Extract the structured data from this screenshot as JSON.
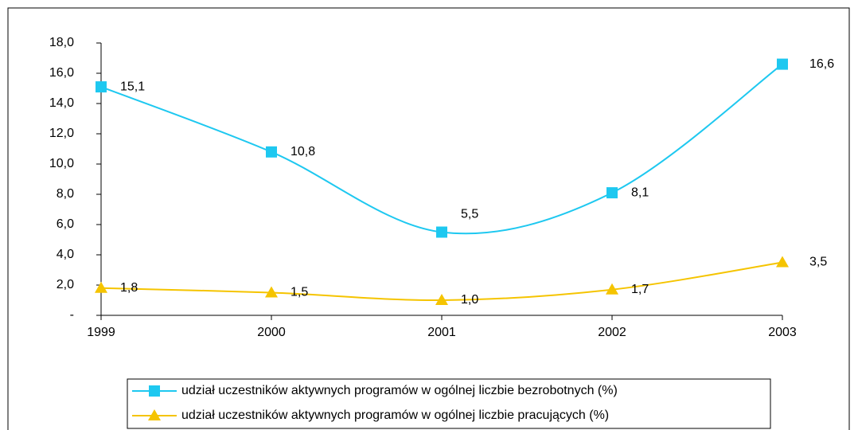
{
  "chart_data": {
    "type": "line",
    "categories": [
      "1999",
      "2000",
      "2001",
      "2002",
      "2003"
    ],
    "series": [
      {
        "name": "udział uczestników aktywnych programów w ogólnej liczbie bezrobotnych (%)",
        "color": "#1ec8f0",
        "marker": "square",
        "values": [
          15.1,
          10.8,
          5.5,
          8.1,
          16.6
        ],
        "value_labels": [
          "15,1",
          "10,8",
          "5,5",
          "8,1",
          "16,6"
        ]
      },
      {
        "name": "udział uczestników aktywnych programów w ogólnej liczbie pracujących (%)",
        "color": "#f5c400",
        "marker": "triangle",
        "values": [
          1.8,
          1.5,
          1.0,
          1.7,
          3.5
        ],
        "value_labels": [
          "1,8",
          "1,5",
          "1,0",
          "1,7",
          "3,5"
        ]
      }
    ],
    "ylim": [
      0,
      18
    ],
    "yticks": [
      {
        "value": 0,
        "label": "-"
      },
      {
        "value": 2,
        "label": "2,0"
      },
      {
        "value": 4,
        "label": "4,0"
      },
      {
        "value": 6,
        "label": "6,0"
      },
      {
        "value": 8,
        "label": "8,0"
      },
      {
        "value": 10,
        "label": "10,0"
      },
      {
        "value": 12,
        "label": "12,0"
      },
      {
        "value": 14,
        "label": "14,0"
      },
      {
        "value": 16,
        "label": "16,0"
      },
      {
        "value": 18,
        "label": "18,0"
      }
    ],
    "smooth": true
  }
}
